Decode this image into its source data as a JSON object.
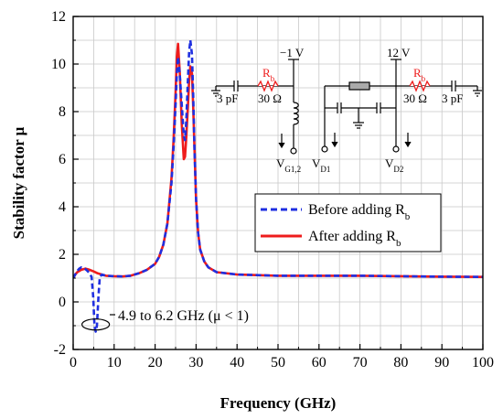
{
  "chart_data": {
    "type": "line",
    "xlabel": "Frequency (GHz)",
    "ylabel": "Stability factor μ",
    "xlim": [
      0,
      100
    ],
    "ylim": [
      -2,
      12
    ],
    "x_ticks": [
      "0",
      "10",
      "20",
      "30",
      "40",
      "50",
      "60",
      "70",
      "80",
      "90",
      "100"
    ],
    "y_ticks": [
      "-2",
      "0",
      "2",
      "4",
      "6",
      "8",
      "10",
      "12"
    ],
    "grid": true,
    "legend_position": "right-center",
    "series": [
      {
        "name_main": "Before adding R",
        "name_sub": "b",
        "color": "#1f2fe0",
        "style": "dashed",
        "x": [
          0,
          0.5,
          1,
          1.5,
          2,
          2.5,
          3,
          3.5,
          4,
          4.5,
          4.9,
          5.2,
          5.5,
          5.8,
          6.2,
          6.5,
          7,
          8,
          10,
          12,
          14,
          16,
          18,
          20,
          21,
          22,
          23,
          24,
          24.5,
          25,
          25.3,
          25.6,
          26,
          26.5,
          27,
          27.3,
          27.6,
          28,
          28.3,
          28.6,
          29,
          29.3,
          29.6,
          30,
          30.5,
          31,
          32,
          33,
          35,
          40,
          50,
          60,
          70,
          80,
          90,
          100
        ],
        "y": [
          1.0,
          1.15,
          1.3,
          1.4,
          1.45,
          1.43,
          1.38,
          1.3,
          1.2,
          1.05,
          0.2,
          -1.0,
          -1.25,
          -1.0,
          0.3,
          1.05,
          1.15,
          1.1,
          1.08,
          1.07,
          1.1,
          1.2,
          1.35,
          1.6,
          1.9,
          2.4,
          3.3,
          5.0,
          6.5,
          8.3,
          9.6,
          10.3,
          9.6,
          8.3,
          7.0,
          6.8,
          7.6,
          9.3,
          10.5,
          11.0,
          10.4,
          8.7,
          6.5,
          4.3,
          2.9,
          2.2,
          1.7,
          1.45,
          1.25,
          1.15,
          1.1,
          1.1,
          1.1,
          1.08,
          1.06,
          1.05
        ]
      },
      {
        "name_main": "After adding R",
        "name_sub": "b",
        "color": "#ee1c1c",
        "style": "solid",
        "x": [
          0,
          0.5,
          1,
          2,
          3,
          4,
          5,
          6,
          7,
          8,
          10,
          12,
          14,
          16,
          18,
          20,
          21,
          22,
          23,
          24,
          24.5,
          25,
          25.3,
          25.6,
          26,
          26.5,
          27,
          27.3,
          27.6,
          28,
          28.3,
          28.6,
          29,
          29.3,
          29.6,
          30,
          30.5,
          31,
          32,
          33,
          35,
          40,
          50,
          60,
          70,
          80,
          90,
          100
        ],
        "y": [
          1.0,
          1.15,
          1.25,
          1.35,
          1.4,
          1.35,
          1.28,
          1.2,
          1.15,
          1.1,
          1.08,
          1.07,
          1.1,
          1.2,
          1.35,
          1.6,
          1.9,
          2.4,
          3.3,
          5.2,
          6.8,
          8.8,
          10.3,
          10.85,
          9.7,
          7.5,
          6.0,
          6.1,
          6.9,
          8.2,
          9.3,
          9.9,
          9.6,
          8.2,
          6.5,
          4.3,
          2.9,
          2.2,
          1.7,
          1.45,
          1.25,
          1.15,
          1.1,
          1.1,
          1.1,
          1.08,
          1.06,
          1.05
        ]
      }
    ],
    "annotation": {
      "text": "4.9 to 6.2 GHz (μ < 1)",
      "x_center": 5.5,
      "y_center": -0.95
    }
  },
  "circuit": {
    "left": {
      "supply": "−1 V",
      "r_main": "R",
      "r_sub": "b",
      "r_value": "30 Ω",
      "cap": "3 pF",
      "node_main": "V",
      "node_sub": "G1,2"
    },
    "right": {
      "supply": "12 V",
      "r_main": "R",
      "r_sub": "b",
      "r_value": "30 Ω",
      "cap": "3 pF",
      "vd1_main": "V",
      "vd1_sub": "D1",
      "vd2_main": "V",
      "vd2_sub": "D2"
    }
  }
}
